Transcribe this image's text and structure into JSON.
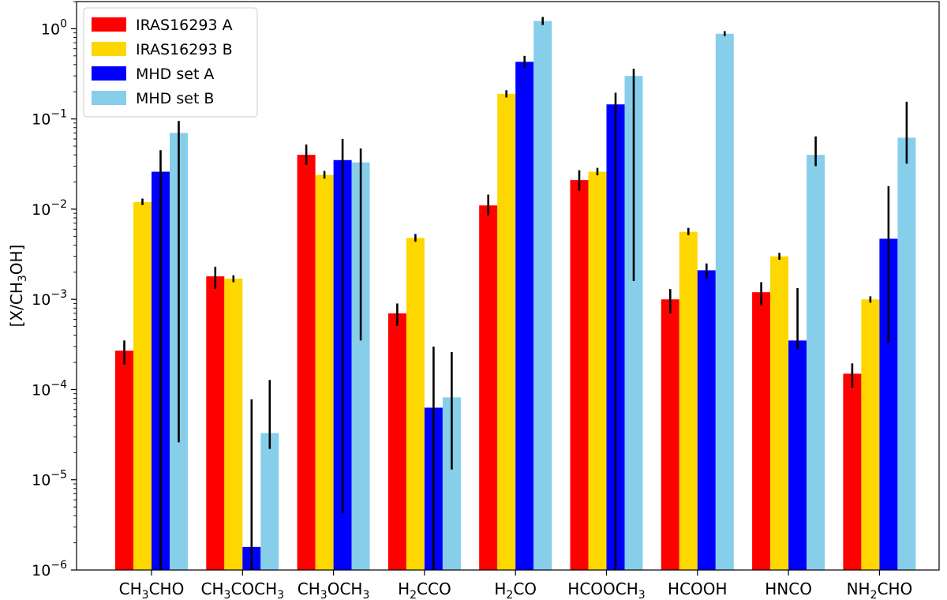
{
  "chart_data": {
    "type": "bar",
    "title": "",
    "xlabel": "",
    "ylabel": {
      "prefix": "[X/CH",
      "sub1": "3",
      "suffix": "OH]"
    },
    "yscale": "log",
    "ylim": [
      1e-06,
      2
    ],
    "y_ticks": [
      {
        "value": 1e-06,
        "base": "10",
        "exp": "−6"
      },
      {
        "value": 1e-05,
        "base": "10",
        "exp": "−5"
      },
      {
        "value": 0.0001,
        "base": "10",
        "exp": "−4"
      },
      {
        "value": 0.001,
        "base": "10",
        "exp": "−3"
      },
      {
        "value": 0.01,
        "base": "10",
        "exp": "−2"
      },
      {
        "value": 0.1,
        "base": "10",
        "exp": "−1"
      },
      {
        "value": 1,
        "base": "10",
        "exp": "0"
      }
    ],
    "categories": [
      {
        "parts": [
          {
            "t": "CH"
          },
          {
            "t": "3",
            "sub": true
          },
          {
            "t": "CHO"
          }
        ]
      },
      {
        "parts": [
          {
            "t": "CH"
          },
          {
            "t": "3",
            "sub": true
          },
          {
            "t": "COCH"
          },
          {
            "t": "3",
            "sub": true
          }
        ]
      },
      {
        "parts": [
          {
            "t": "CH"
          },
          {
            "t": "3",
            "sub": true
          },
          {
            "t": "OCH"
          },
          {
            "t": "3",
            "sub": true
          }
        ]
      },
      {
        "parts": [
          {
            "t": "H"
          },
          {
            "t": "2",
            "sub": true
          },
          {
            "t": "CCO"
          }
        ]
      },
      {
        "parts": [
          {
            "t": "H"
          },
          {
            "t": "2",
            "sub": true
          },
          {
            "t": "CO"
          }
        ]
      },
      {
        "parts": [
          {
            "t": "HCOOCH"
          },
          {
            "t": "3",
            "sub": true
          }
        ]
      },
      {
        "parts": [
          {
            "t": "HCOOH"
          }
        ]
      },
      {
        "parts": [
          {
            "t": "HNCO"
          }
        ]
      },
      {
        "parts": [
          {
            "t": "NH"
          },
          {
            "t": "2",
            "sub": true
          },
          {
            "t": "CHO"
          }
        ]
      }
    ],
    "series": [
      {
        "name": "IRAS16293 A",
        "color": "#ff0000",
        "values": [
          0.00027,
          0.0018,
          0.04,
          0.0007,
          0.011,
          0.021,
          0.001,
          0.0012,
          0.00015
        ],
        "err_low": [
          0.00019,
          0.0013,
          0.031,
          0.00051,
          0.0085,
          0.016,
          0.0007,
          0.00085,
          0.000105
        ],
        "err_high": [
          0.00035,
          0.0023,
          0.052,
          0.0009,
          0.0145,
          0.027,
          0.0013,
          0.00155,
          0.000195
        ]
      },
      {
        "name": "IRAS16293 B",
        "color": "#ffd700",
        "values": [
          0.012,
          0.0017,
          0.024,
          0.0048,
          0.19,
          0.026,
          0.0056,
          0.003,
          0.001
        ],
        "err_low": [
          0.0111,
          0.00155,
          0.0218,
          0.00435,
          0.173,
          0.0237,
          0.00515,
          0.00275,
          0.00092
        ],
        "err_high": [
          0.0131,
          0.00185,
          0.0265,
          0.0053,
          0.208,
          0.0287,
          0.0062,
          0.00328,
          0.00108
        ]
      },
      {
        "name": "MHD set A",
        "color": "#0000ff",
        "values": [
          0.026,
          1.8e-06,
          0.035,
          6.3e-05,
          0.43,
          0.145,
          0.0021,
          0.00035,
          0.0047
        ],
        "err_low": [
          1e-06,
          1e-06,
          4.2e-06,
          1e-06,
          0.37,
          1e-06,
          0.0017,
          0.00028,
          0.00033
        ],
        "err_high": [
          0.045,
          7.8e-05,
          0.06,
          0.0003,
          0.5,
          0.195,
          0.0025,
          0.00133,
          0.018
        ]
      },
      {
        "name": "MHD set B",
        "color": "#87ceeb",
        "values": [
          0.07,
          3.3e-05,
          0.033,
          8.2e-05,
          1.22,
          0.3,
          0.88,
          0.04,
          0.062
        ],
        "err_low": [
          2.6e-05,
          2.2e-05,
          0.00035,
          1.3e-05,
          1.1,
          0.0016,
          0.83,
          0.03,
          0.032
        ],
        "err_high": [
          0.095,
          0.000128,
          0.047,
          0.00026,
          1.35,
          0.36,
          0.94,
          0.064,
          0.155
        ]
      }
    ],
    "legend": "top-left",
    "grid": false
  }
}
